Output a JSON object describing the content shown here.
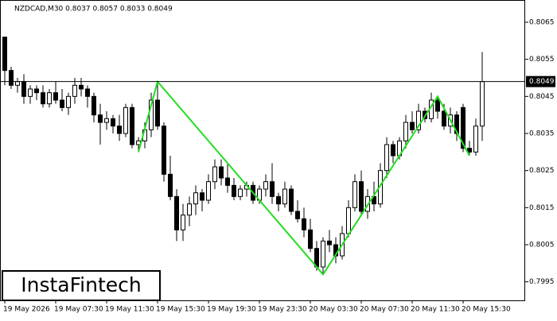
{
  "chart_data": {
    "type": "candlestick",
    "title": "NZDCAD,M30  0.8037 0.8057 0.8033 0.8049",
    "categories": [
      "19 May 2026",
      null,
      null,
      null,
      null,
      null,
      null,
      null,
      "19 May 07:30",
      null,
      null,
      null,
      null,
      null,
      null,
      null,
      "19 May 11:30",
      null,
      null,
      null,
      null,
      null,
      null,
      null,
      "19 May 15:30",
      null,
      null,
      null,
      null,
      null,
      null,
      null,
      "19 May 19:30",
      null,
      null,
      null,
      null,
      null,
      null,
      null,
      "19 May 23:30",
      null,
      null,
      null,
      null,
      null,
      null,
      null,
      "20 May 03:30",
      null,
      null,
      null,
      null,
      null,
      null,
      null,
      "20 May 07:30",
      null,
      null,
      null,
      null,
      null,
      null,
      null,
      "20 May 11:30",
      null,
      null,
      null,
      null,
      null,
      null,
      null,
      "20 May 15:30",
      null,
      null,
      null
    ],
    "open": [
      0.8061,
      0.8052,
      0.8048,
      0.8049,
      0.8045,
      0.8047,
      0.8046,
      0.8043,
      0.8046,
      0.8044,
      0.8042,
      0.8045,
      0.8048,
      0.8047,
      0.8045,
      0.804,
      0.8038,
      0.8039,
      0.8037,
      0.8035,
      0.8042,
      0.8032,
      0.8033,
      0.8036,
      0.8044,
      0.8037,
      0.8024,
      0.8018,
      0.8009,
      0.8013,
      0.8016,
      0.8019,
      0.8017,
      0.8022,
      0.8026,
      0.8023,
      0.8021,
      0.8018,
      0.802,
      0.8021,
      0.8017,
      0.802,
      0.8022,
      0.8018,
      0.8016,
      0.802,
      0.8014,
      0.8012,
      0.8009,
      0.8004,
      0.7999,
      0.8006,
      0.8005,
      0.8002,
      0.8008,
      0.8015,
      0.8022,
      0.8014,
      0.8018,
      0.8016,
      0.8025,
      0.8032,
      0.8029,
      0.8033,
      0.8038,
      0.8036,
      0.8041,
      0.8039,
      0.8044,
      0.8041,
      0.8037,
      0.804,
      0.8042,
      0.8031,
      0.803,
      0.8037
    ],
    "high": [
      0.8061,
      0.8053,
      0.805,
      0.8051,
      0.8048,
      0.8048,
      0.8048,
      0.8047,
      0.8049,
      0.8047,
      0.8046,
      0.805,
      0.805,
      0.8048,
      0.8046,
      0.8043,
      0.8041,
      0.804,
      0.804,
      0.8043,
      0.8043,
      0.8034,
      0.8038,
      0.8046,
      0.8049,
      0.8038,
      0.8029,
      0.802,
      0.8016,
      0.8018,
      0.8021,
      0.802,
      0.8024,
      0.8028,
      0.8028,
      0.8027,
      0.8023,
      0.8021,
      0.8022,
      0.8022,
      0.8021,
      0.8024,
      0.8027,
      0.8019,
      0.8022,
      0.8021,
      0.8017,
      0.8015,
      0.8012,
      0.8006,
      0.8007,
      0.8009,
      0.8007,
      0.801,
      0.8017,
      0.8024,
      0.8025,
      0.802,
      0.8022,
      0.8027,
      0.8034,
      0.8033,
      0.8034,
      0.804,
      0.8041,
      0.8043,
      0.8042,
      0.8046,
      0.8045,
      0.8043,
      0.8042,
      0.8041,
      0.8043,
      0.8033,
      0.8039,
      0.8057
    ],
    "low": [
      0.8048,
      0.8047,
      0.8046,
      0.8043,
      0.8043,
      0.8044,
      0.8042,
      0.8042,
      0.8043,
      0.8041,
      0.804,
      0.8043,
      0.8045,
      0.8042,
      0.8038,
      0.8032,
      0.8036,
      0.8035,
      0.8033,
      0.8034,
      0.8031,
      0.803,
      0.8031,
      0.8034,
      0.8036,
      0.8022,
      0.8017,
      0.8006,
      0.8006,
      0.801,
      0.8013,
      0.8014,
      0.8016,
      0.802,
      0.8021,
      0.8019,
      0.8017,
      0.8017,
      0.8018,
      0.8016,
      0.8016,
      0.8018,
      0.8016,
      0.8014,
      0.8015,
      0.8013,
      0.8011,
      0.8007,
      0.8003,
      0.7998,
      0.7997,
      0.8003,
      0.8,
      0.8001,
      0.8007,
      0.8014,
      0.8013,
      0.8012,
      0.8014,
      0.8015,
      0.8023,
      0.8027,
      0.8028,
      0.8031,
      0.8035,
      0.8035,
      0.8038,
      0.8038,
      0.8039,
      0.8036,
      0.8035,
      0.8033,
      0.803,
      0.8029,
      0.8029,
      0.8033
    ],
    "close": [
      0.8052,
      0.8048,
      0.8049,
      0.8045,
      0.8047,
      0.8046,
      0.8043,
      0.8046,
      0.8044,
      0.8042,
      0.8045,
      0.8048,
      0.8047,
      0.8045,
      0.804,
      0.8038,
      0.8039,
      0.8037,
      0.8035,
      0.8042,
      0.8032,
      0.8033,
      0.8036,
      0.8044,
      0.8037,
      0.8024,
      0.8018,
      0.8009,
      0.8013,
      0.8016,
      0.8019,
      0.8017,
      0.8022,
      0.8026,
      0.8023,
      0.8021,
      0.8018,
      0.802,
      0.8021,
      0.8017,
      0.802,
      0.8022,
      0.8018,
      0.8016,
      0.802,
      0.8014,
      0.8012,
      0.8009,
      0.8004,
      0.7999,
      0.8006,
      0.8005,
      0.8002,
      0.8008,
      0.8015,
      0.8022,
      0.8014,
      0.8018,
      0.8016,
      0.8025,
      0.8032,
      0.8029,
      0.8033,
      0.8038,
      0.8036,
      0.8041,
      0.8039,
      0.8044,
      0.8041,
      0.8037,
      0.804,
      0.8035,
      0.8031,
      0.803,
      0.8037,
      0.8049
    ],
    "up_color": "#ffffff",
    "down_color": "#000000",
    "ylim": [
      0.799,
      0.8071
    ],
    "yticks": [
      0.7995,
      0.8005,
      0.8015,
      0.8025,
      0.8035,
      0.8045,
      0.8055,
      0.8065
    ],
    "price_line": {
      "value": 0.8049,
      "label": "0.8049"
    },
    "pattern": {
      "color": "#22dd22",
      "x": [
        21,
        24,
        50,
        68,
        73
      ],
      "values": [
        0.803,
        0.8049,
        0.7997,
        0.8045,
        0.8029
      ]
    }
  },
  "logo": "InstaFintech"
}
